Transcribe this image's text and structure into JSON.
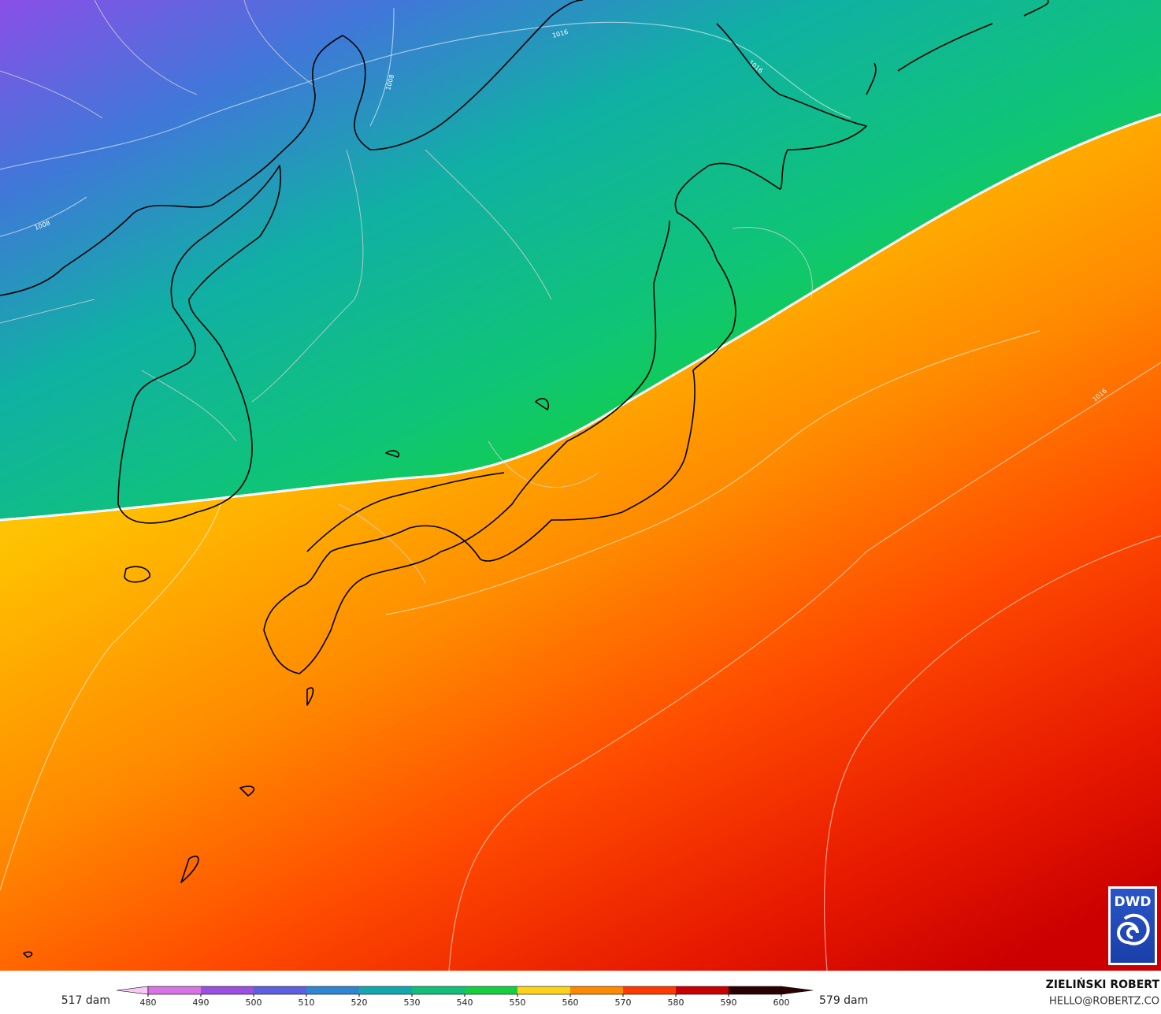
{
  "map": {
    "contour_labels": [
      "1016",
      "1008",
      "1008",
      "1016",
      "1016"
    ]
  },
  "legend": {
    "min_label": "517 dam",
    "max_label": "579 dam",
    "ticks": [
      480,
      490,
      500,
      510,
      520,
      530,
      540,
      550,
      560,
      570,
      580,
      590,
      600
    ],
    "colors": [
      "#f7c9f4",
      "#d774e3",
      "#9a4fe0",
      "#5d5fe0",
      "#2f86d0",
      "#13a8b0",
      "#0fbf7a",
      "#14d040",
      "#ffd21a",
      "#ff8a00",
      "#ff3a00",
      "#c80000",
      "#2a0000"
    ]
  },
  "credits": {
    "author": "ZIELIŃSKI ROBERT",
    "contact": "HELLO@ROBERTZ.CO",
    "logo": "DWD"
  }
}
